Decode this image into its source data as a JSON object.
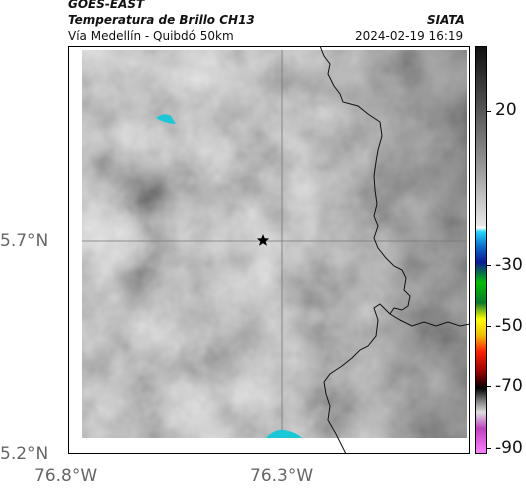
{
  "header": {
    "title": "GOES-EAST",
    "subtitle": "Temperatura de Brillo CH13",
    "route": "Vía Medellín - Quibdó 50km",
    "org": "SIATA",
    "timestamp": "2024-02-19 16:19"
  },
  "axes": {
    "y_ticks": [
      "5.7°N",
      "5.2°N"
    ],
    "x_ticks": [
      "76.8°W",
      "76.3°W"
    ]
  },
  "colorbar": {
    "labels": [
      "20",
      "-30",
      "-50",
      "-70",
      "-90"
    ]
  },
  "colors": {
    "cold_cloud": "#19c8d8",
    "marker": "#000000",
    "border": "#000000"
  },
  "icons": {
    "location_marker": "star-icon"
  }
}
